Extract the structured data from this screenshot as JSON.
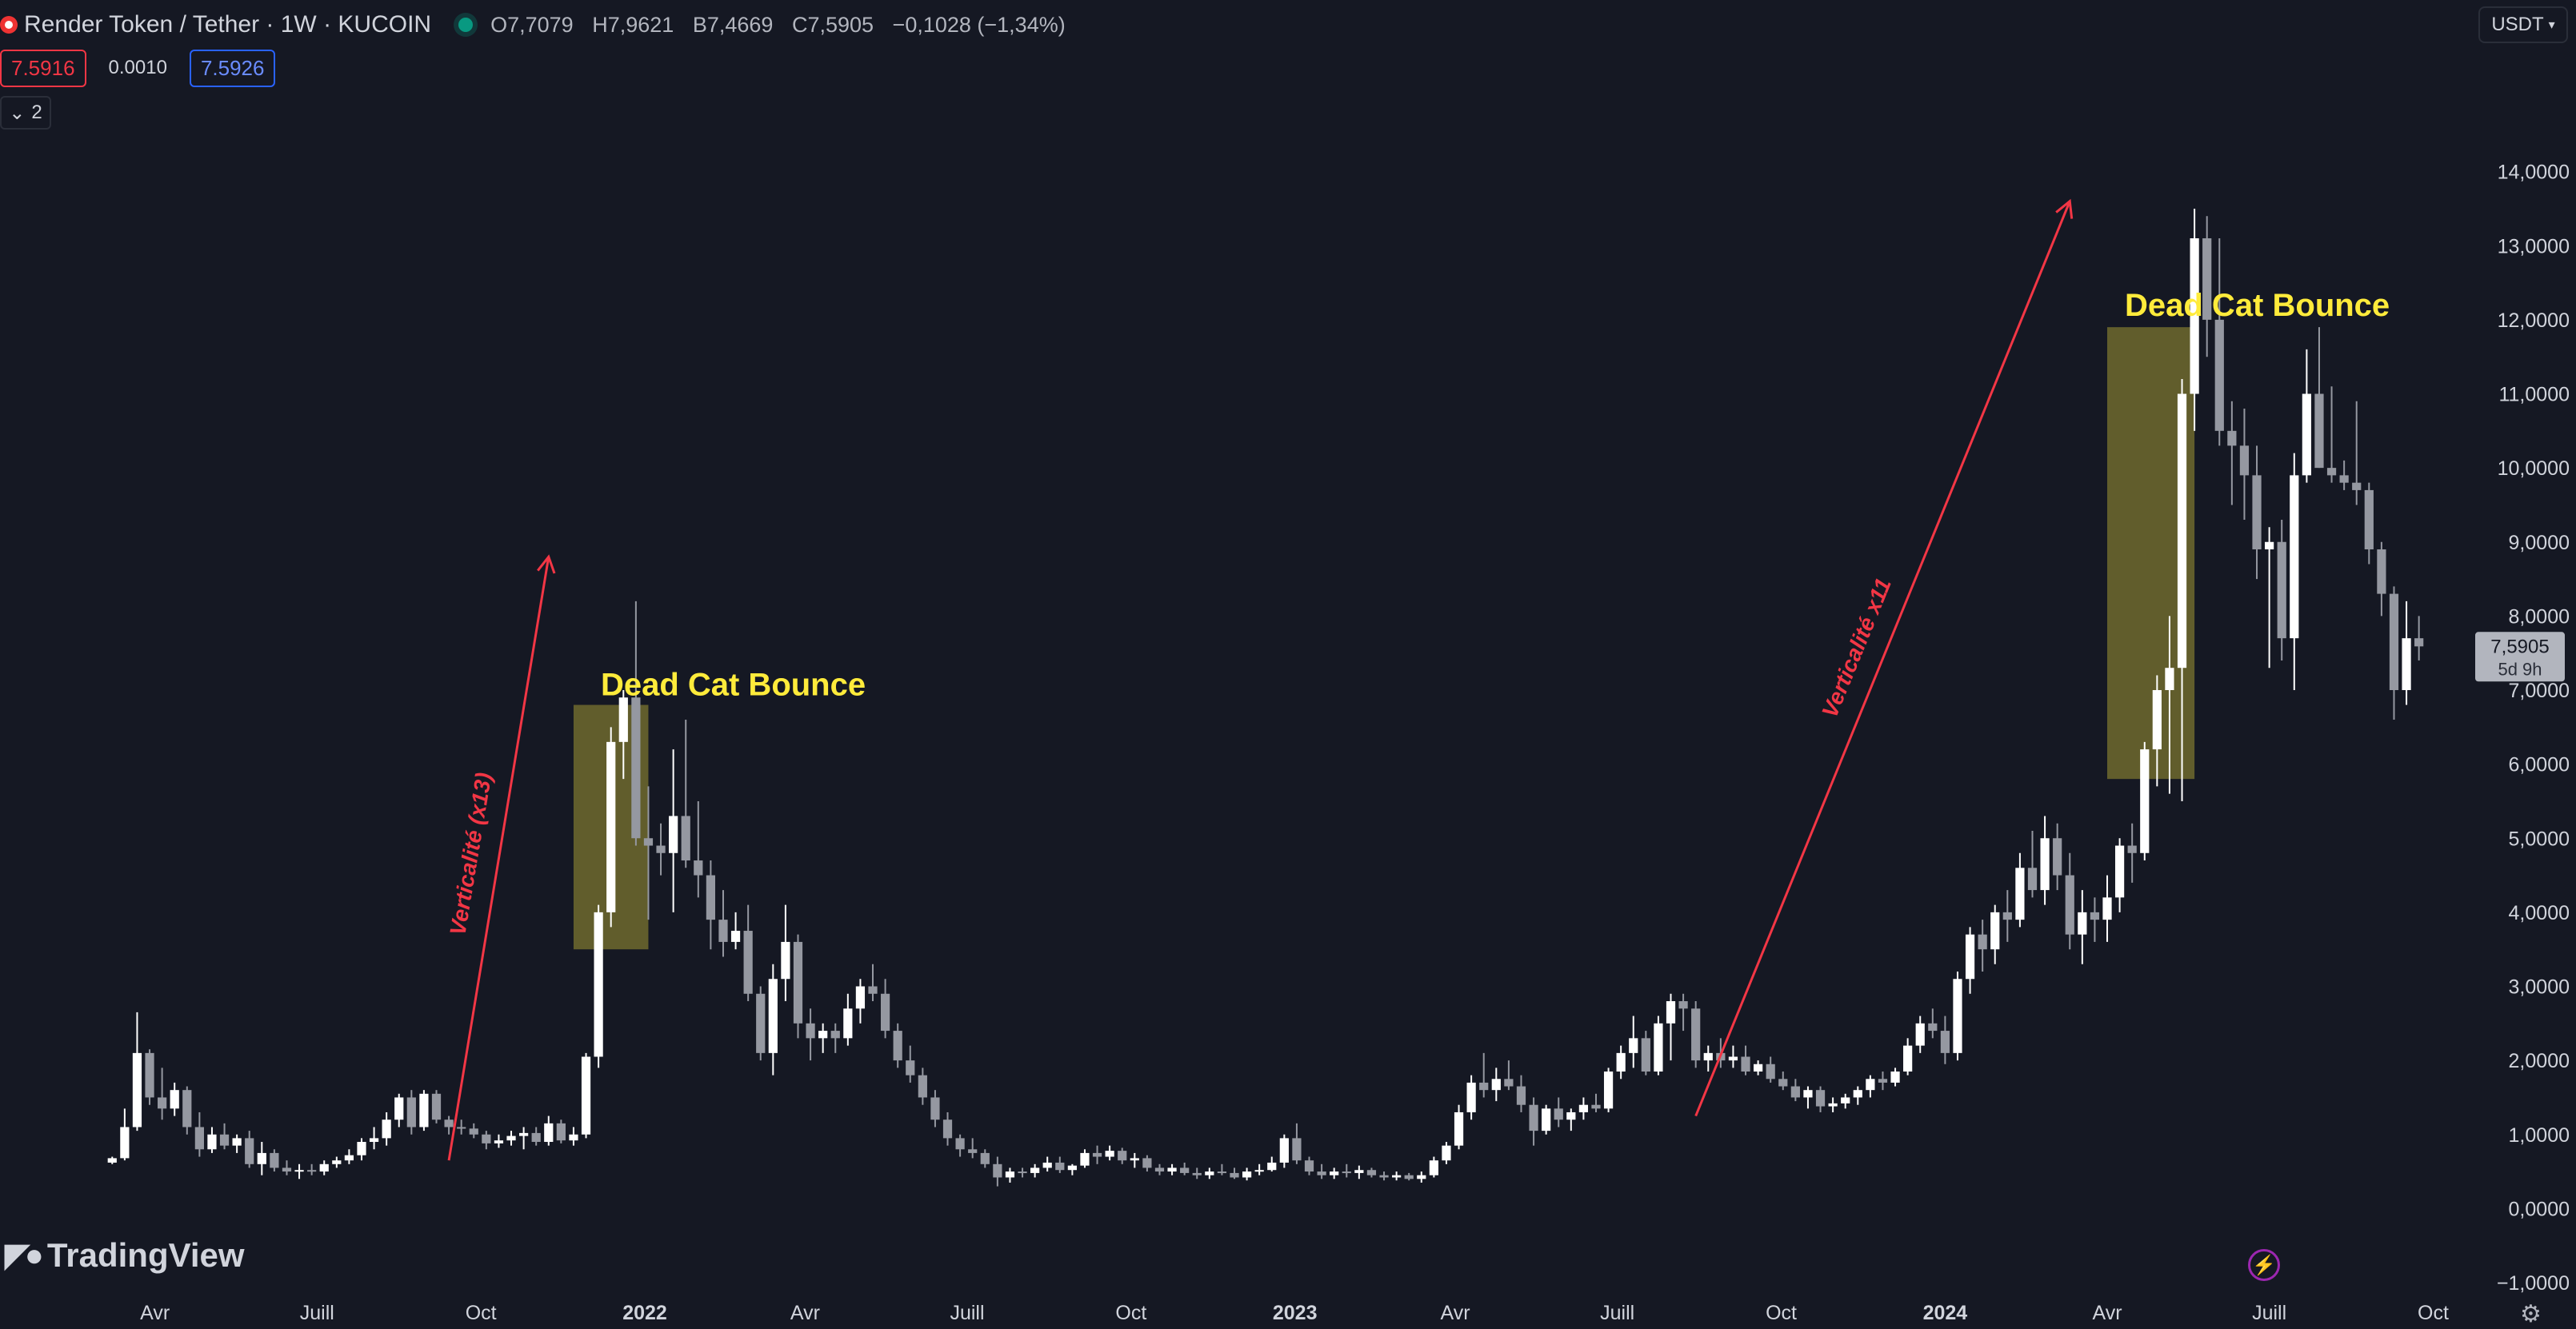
{
  "header": {
    "symbol_title": "Render Token / Tether · 1W · KUCOIN",
    "ohlc": [
      {
        "k": "O",
        "v": "7,7079"
      },
      {
        "k": "H",
        "v": "7,9621"
      },
      {
        "k": "B",
        "v": "7,4669"
      },
      {
        "k": "C",
        "v": "7,5905"
      }
    ],
    "change": "−0,1028 (−1,34%)",
    "sell_price": "7.5916",
    "spread": "0.0010",
    "buy_price": "7.5926",
    "indicators_toggle": "2",
    "currency_button": "USDT"
  },
  "branding": {
    "name": "TradingView"
  },
  "colors": {
    "background": "#151823",
    "bull": "#ffffff",
    "bear": "#9598a1",
    "annotation_red": "#f23645",
    "annotation_yellow": "#ffeb3b",
    "box_fill": "#6f6a2e"
  },
  "chart_data": {
    "type": "candlestick",
    "title": "Render Token / Tether · 1W · KUCOIN",
    "y_axis_ticks": [
      "14,0000",
      "13,0000",
      "12,0000",
      "11,0000",
      "10,0000",
      "9,0000",
      "8,0000",
      "7,0000",
      "6,0000",
      "5,0000",
      "4,0000",
      "3,0000",
      "2,0000",
      "1,0000",
      "0,0000",
      "−1,0000"
    ],
    "y_tick_values": [
      14,
      13,
      12,
      11,
      10,
      9,
      8,
      7,
      6,
      5,
      4,
      3,
      2,
      1,
      0,
      -1
    ],
    "ylim": [
      -1.0,
      15.0
    ],
    "x_axis_ticks": [
      {
        "label": "Avr",
        "bold": false,
        "date": "2021-04-01"
      },
      {
        "label": "Juill",
        "bold": false,
        "date": "2021-07-01"
      },
      {
        "label": "Oct",
        "bold": false,
        "date": "2021-10-01"
      },
      {
        "label": "2022",
        "bold": true,
        "date": "2022-01-01"
      },
      {
        "label": "Avr",
        "bold": false,
        "date": "2022-04-01"
      },
      {
        "label": "Juill",
        "bold": false,
        "date": "2022-07-01"
      },
      {
        "label": "Oct",
        "bold": false,
        "date": "2022-10-01"
      },
      {
        "label": "2023",
        "bold": true,
        "date": "2023-01-01"
      },
      {
        "label": "Avr",
        "bold": false,
        "date": "2023-04-01"
      },
      {
        "label": "Juill",
        "bold": false,
        "date": "2023-07-01"
      },
      {
        "label": "Oct",
        "bold": false,
        "date": "2023-10-01"
      },
      {
        "label": "2024",
        "bold": true,
        "date": "2024-01-01"
      },
      {
        "label": "Avr",
        "bold": false,
        "date": "2024-04-01"
      },
      {
        "label": "Juill",
        "bold": false,
        "date": "2024-07-01"
      },
      {
        "label": "Oct",
        "bold": false,
        "date": "2024-10-01"
      }
    ],
    "x_range": [
      "2021-01-04",
      "2024-10-21"
    ],
    "start_week": "2021-03-08",
    "last_price": {
      "value": 7.5905,
      "label": "7,5905",
      "countdown": "5d 9h"
    },
    "candles": [
      [
        0.62,
        0.7,
        0.6,
        0.68
      ],
      [
        0.68,
        1.35,
        0.65,
        1.1
      ],
      [
        1.1,
        2.65,
        1.05,
        2.1
      ],
      [
        2.1,
        2.15,
        1.4,
        1.5
      ],
      [
        1.5,
        1.9,
        1.2,
        1.35
      ],
      [
        1.35,
        1.7,
        1.25,
        1.6
      ],
      [
        1.6,
        1.65,
        1.0,
        1.1
      ],
      [
        1.1,
        1.3,
        0.7,
        0.8
      ],
      [
        0.8,
        1.1,
        0.75,
        1.0
      ],
      [
        1.0,
        1.15,
        0.8,
        0.85
      ],
      [
        0.85,
        1.0,
        0.75,
        0.95
      ],
      [
        0.95,
        1.05,
        0.55,
        0.6
      ],
      [
        0.6,
        0.9,
        0.45,
        0.75
      ],
      [
        0.75,
        0.8,
        0.5,
        0.55
      ],
      [
        0.55,
        0.65,
        0.45,
        0.5
      ],
      [
        0.5,
        0.6,
        0.4,
        0.52
      ],
      [
        0.52,
        0.6,
        0.45,
        0.5
      ],
      [
        0.5,
        0.65,
        0.45,
        0.6
      ],
      [
        0.6,
        0.7,
        0.55,
        0.65
      ],
      [
        0.65,
        0.8,
        0.6,
        0.72
      ],
      [
        0.72,
        0.95,
        0.65,
        0.9
      ],
      [
        0.9,
        1.1,
        0.8,
        0.95
      ],
      [
        0.95,
        1.3,
        0.85,
        1.2
      ],
      [
        1.2,
        1.55,
        1.1,
        1.5
      ],
      [
        1.5,
        1.6,
        1.0,
        1.1
      ],
      [
        1.1,
        1.6,
        1.05,
        1.55
      ],
      [
        1.55,
        1.6,
        1.15,
        1.2
      ],
      [
        1.2,
        1.25,
        1.0,
        1.1
      ],
      [
        1.1,
        1.2,
        1.0,
        1.08
      ],
      [
        1.08,
        1.15,
        0.95,
        1.0
      ],
      [
        1.0,
        1.05,
        0.8,
        0.88
      ],
      [
        0.88,
        1.0,
        0.82,
        0.92
      ],
      [
        0.92,
        1.05,
        0.85,
        0.98
      ],
      [
        0.98,
        1.1,
        0.8,
        1.02
      ],
      [
        1.02,
        1.1,
        0.85,
        0.9
      ],
      [
        0.9,
        1.25,
        0.85,
        1.15
      ],
      [
        1.15,
        1.2,
        0.88,
        0.92
      ],
      [
        0.92,
        1.1,
        0.85,
        1.0
      ],
      [
        1.0,
        2.1,
        0.95,
        2.05
      ],
      [
        2.05,
        4.1,
        1.9,
        4.0
      ],
      [
        4.0,
        6.5,
        3.8,
        6.3
      ],
      [
        6.3,
        7.0,
        5.8,
        6.9
      ],
      [
        6.9,
        8.2,
        4.9,
        5.0
      ],
      [
        5.0,
        5.7,
        3.9,
        4.9
      ],
      [
        4.9,
        5.2,
        4.5,
        4.8
      ],
      [
        4.8,
        6.2,
        4.0,
        5.3
      ],
      [
        5.3,
        6.6,
        4.6,
        4.7
      ],
      [
        4.7,
        5.5,
        4.2,
        4.5
      ],
      [
        4.5,
        4.7,
        3.5,
        3.9
      ],
      [
        3.9,
        4.3,
        3.4,
        3.6
      ],
      [
        3.6,
        4.0,
        3.5,
        3.75
      ],
      [
        3.75,
        4.1,
        2.8,
        2.9
      ],
      [
        2.9,
        3.0,
        2.0,
        2.1
      ],
      [
        2.1,
        3.3,
        1.8,
        3.1
      ],
      [
        3.1,
        4.1,
        2.8,
        3.6
      ],
      [
        3.6,
        3.7,
        2.3,
        2.5
      ],
      [
        2.5,
        2.7,
        2.0,
        2.3
      ],
      [
        2.3,
        2.5,
        2.1,
        2.4
      ],
      [
        2.4,
        2.5,
        2.1,
        2.3
      ],
      [
        2.3,
        2.9,
        2.2,
        2.7
      ],
      [
        2.7,
        3.1,
        2.5,
        3.0
      ],
      [
        3.0,
        3.3,
        2.8,
        2.9
      ],
      [
        2.9,
        3.1,
        2.3,
        2.4
      ],
      [
        2.4,
        2.5,
        1.9,
        2.0
      ],
      [
        2.0,
        2.2,
        1.7,
        1.8
      ],
      [
        1.8,
        1.9,
        1.4,
        1.5
      ],
      [
        1.5,
        1.6,
        1.1,
        1.2
      ],
      [
        1.2,
        1.3,
        0.85,
        0.95
      ],
      [
        0.95,
        1.0,
        0.7,
        0.8
      ],
      [
        0.8,
        0.95,
        0.68,
        0.75
      ],
      [
        0.75,
        0.8,
        0.55,
        0.6
      ],
      [
        0.6,
        0.7,
        0.3,
        0.42
      ],
      [
        0.42,
        0.55,
        0.35,
        0.5
      ],
      [
        0.5,
        0.55,
        0.42,
        0.48
      ],
      [
        0.48,
        0.6,
        0.42,
        0.55
      ],
      [
        0.55,
        0.7,
        0.5,
        0.62
      ],
      [
        0.62,
        0.7,
        0.48,
        0.52
      ],
      [
        0.52,
        0.6,
        0.45,
        0.58
      ],
      [
        0.58,
        0.8,
        0.55,
        0.75
      ],
      [
        0.75,
        0.85,
        0.6,
        0.7
      ],
      [
        0.7,
        0.85,
        0.65,
        0.78
      ],
      [
        0.78,
        0.82,
        0.6,
        0.65
      ],
      [
        0.65,
        0.75,
        0.55,
        0.68
      ],
      [
        0.68,
        0.72,
        0.5,
        0.55
      ],
      [
        0.55,
        0.6,
        0.45,
        0.5
      ],
      [
        0.5,
        0.6,
        0.45,
        0.55
      ],
      [
        0.55,
        0.62,
        0.45,
        0.48
      ],
      [
        0.48,
        0.55,
        0.4,
        0.45
      ],
      [
        0.45,
        0.55,
        0.4,
        0.5
      ],
      [
        0.5,
        0.6,
        0.45,
        0.48
      ],
      [
        0.48,
        0.55,
        0.4,
        0.42
      ],
      [
        0.42,
        0.55,
        0.38,
        0.5
      ],
      [
        0.5,
        0.6,
        0.45,
        0.52
      ],
      [
        0.52,
        0.7,
        0.5,
        0.62
      ],
      [
        0.62,
        1.0,
        0.55,
        0.95
      ],
      [
        0.95,
        1.15,
        0.6,
        0.65
      ],
      [
        0.65,
        0.7,
        0.45,
        0.5
      ],
      [
        0.5,
        0.6,
        0.4,
        0.45
      ],
      [
        0.45,
        0.55,
        0.4,
        0.5
      ],
      [
        0.5,
        0.6,
        0.42,
        0.48
      ],
      [
        0.48,
        0.58,
        0.4,
        0.52
      ],
      [
        0.52,
        0.55,
        0.42,
        0.45
      ],
      [
        0.45,
        0.5,
        0.38,
        0.42
      ],
      [
        0.42,
        0.5,
        0.38,
        0.45
      ],
      [
        0.45,
        0.48,
        0.38,
        0.4
      ],
      [
        0.4,
        0.5,
        0.35,
        0.45
      ],
      [
        0.45,
        0.7,
        0.42,
        0.65
      ],
      [
        0.65,
        0.9,
        0.6,
        0.85
      ],
      [
        0.85,
        1.4,
        0.8,
        1.3
      ],
      [
        1.3,
        1.8,
        1.2,
        1.7
      ],
      [
        1.7,
        2.1,
        1.5,
        1.6
      ],
      [
        1.6,
        1.9,
        1.45,
        1.75
      ],
      [
        1.75,
        2.0,
        1.6,
        1.65
      ],
      [
        1.65,
        1.8,
        1.3,
        1.4
      ],
      [
        1.4,
        1.5,
        0.85,
        1.05
      ],
      [
        1.05,
        1.4,
        1.0,
        1.35
      ],
      [
        1.35,
        1.5,
        1.1,
        1.2
      ],
      [
        1.2,
        1.35,
        1.05,
        1.3
      ],
      [
        1.3,
        1.5,
        1.2,
        1.4
      ],
      [
        1.4,
        1.55,
        1.3,
        1.35
      ],
      [
        1.35,
        1.9,
        1.3,
        1.85
      ],
      [
        1.85,
        2.2,
        1.75,
        2.1
      ],
      [
        2.1,
        2.6,
        1.9,
        2.3
      ],
      [
        2.3,
        2.4,
        1.8,
        1.85
      ],
      [
        1.85,
        2.6,
        1.8,
        2.5
      ],
      [
        2.5,
        2.9,
        2.0,
        2.8
      ],
      [
        2.8,
        2.9,
        2.4,
        2.7
      ],
      [
        2.7,
        2.8,
        1.9,
        2.0
      ],
      [
        2.0,
        2.2,
        1.85,
        2.1
      ],
      [
        2.1,
        2.3,
        1.9,
        2.0
      ],
      [
        2.0,
        2.2,
        1.9,
        2.05
      ],
      [
        2.05,
        2.2,
        1.8,
        1.85
      ],
      [
        1.85,
        2.0,
        1.8,
        1.95
      ],
      [
        1.95,
        2.05,
        1.7,
        1.75
      ],
      [
        1.75,
        1.85,
        1.6,
        1.65
      ],
      [
        1.65,
        1.75,
        1.45,
        1.5
      ],
      [
        1.5,
        1.65,
        1.35,
        1.6
      ],
      [
        1.6,
        1.65,
        1.3,
        1.38
      ],
      [
        1.38,
        1.5,
        1.3,
        1.42
      ],
      [
        1.42,
        1.55,
        1.35,
        1.5
      ],
      [
        1.5,
        1.65,
        1.4,
        1.6
      ],
      [
        1.6,
        1.8,
        1.5,
        1.75
      ],
      [
        1.75,
        1.85,
        1.6,
        1.7
      ],
      [
        1.7,
        1.9,
        1.65,
        1.85
      ],
      [
        1.85,
        2.3,
        1.8,
        2.2
      ],
      [
        2.2,
        2.6,
        2.1,
        2.5
      ],
      [
        2.5,
        2.7,
        2.3,
        2.4
      ],
      [
        2.4,
        2.6,
        1.95,
        2.1
      ],
      [
        2.1,
        3.2,
        2.0,
        3.1
      ],
      [
        3.1,
        3.8,
        2.9,
        3.7
      ],
      [
        3.7,
        3.9,
        3.2,
        3.5
      ],
      [
        3.5,
        4.1,
        3.3,
        4.0
      ],
      [
        4.0,
        4.3,
        3.6,
        3.9
      ],
      [
        3.9,
        4.8,
        3.8,
        4.6
      ],
      [
        4.6,
        5.1,
        4.2,
        4.3
      ],
      [
        4.3,
        5.3,
        4.1,
        5.0
      ],
      [
        5.0,
        5.2,
        4.3,
        4.5
      ],
      [
        4.5,
        4.8,
        3.5,
        3.7
      ],
      [
        3.7,
        4.3,
        3.3,
        4.0
      ],
      [
        4.0,
        4.2,
        3.6,
        3.9
      ],
      [
        3.9,
        4.5,
        3.6,
        4.2
      ],
      [
        4.2,
        5.0,
        4.0,
        4.9
      ],
      [
        4.9,
        5.2,
        4.4,
        4.8
      ],
      [
        4.8,
        6.3,
        4.7,
        6.2
      ],
      [
        6.2,
        7.2,
        5.7,
        7.0
      ],
      [
        7.0,
        8.0,
        5.6,
        7.3
      ],
      [
        7.3,
        11.2,
        5.5,
        11.0
      ],
      [
        11.0,
        13.5,
        10.5,
        13.1
      ],
      [
        13.1,
        13.4,
        11.5,
        12.0
      ],
      [
        12.0,
        13.1,
        10.3,
        10.5
      ],
      [
        10.5,
        10.9,
        9.5,
        10.3
      ],
      [
        10.3,
        10.8,
        9.3,
        9.9
      ],
      [
        9.9,
        10.3,
        8.5,
        8.9
      ],
      [
        8.9,
        9.2,
        7.3,
        9.0
      ],
      [
        9.0,
        9.3,
        7.4,
        7.7
      ],
      [
        7.7,
        10.2,
        7.0,
        9.9
      ],
      [
        9.9,
        11.6,
        9.8,
        11.0
      ],
      [
        11.0,
        11.9,
        10.0,
        10.0
      ],
      [
        10.0,
        11.1,
        9.8,
        9.9
      ],
      [
        9.9,
        10.1,
        9.7,
        9.8
      ],
      [
        9.8,
        10.9,
        9.5,
        9.7
      ],
      [
        9.7,
        9.8,
        8.7,
        8.9
      ],
      [
        8.9,
        9.0,
        8.0,
        8.3
      ],
      [
        8.3,
        8.4,
        6.6,
        7.0
      ],
      [
        7.0,
        8.2,
        6.8,
        7.7
      ],
      [
        7.7,
        8.0,
        7.4,
        7.59
      ]
    ]
  },
  "annotations": {
    "arrow1_label": "Verticalité (x13)",
    "arrow1_from": {
      "date": "2021-09-13",
      "price": 0.65
    },
    "arrow1_to": {
      "date": "2021-11-08",
      "price": 8.8
    },
    "arrow2_label": "Verticalité x11",
    "arrow2_from": {
      "date": "2023-08-14",
      "price": 1.25
    },
    "arrow2_to": {
      "date": "2024-03-11",
      "price": 13.6
    },
    "box1_label": "Dead Cat Bounce",
    "box1": {
      "date_from": "2021-11-22",
      "date_to": "2022-01-03",
      "price_from": 3.5,
      "price_to": 6.8
    },
    "box2_label": "Dead Cat Bounce",
    "box2": {
      "date_from": "2024-04-01",
      "date_to": "2024-05-20",
      "price_from": 5.8,
      "price_to": 11.9
    }
  }
}
